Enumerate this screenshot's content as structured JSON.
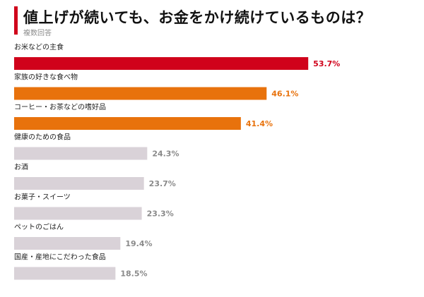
{
  "header": {
    "title": "値上げが続いても、お金をかけ続けているものは？",
    "subtitle": "複数回答"
  },
  "colors": {
    "accent": "#d0021b",
    "top": "#d0021b",
    "high": "#e8720c",
    "other": "#d9d2d8",
    "other_text": "#8a8a8a"
  },
  "chart_data": {
    "type": "bar",
    "orientation": "horizontal",
    "title": "値上げが続いても、お金をかけ続けているものは？",
    "subtitle": "複数回答",
    "categories": [
      "お米などの主食",
      "家族の好きな食べ物",
      "コーヒー・お茶などの嗜好品",
      "健康のための食品",
      "お酒",
      "お菓子・スイーツ",
      "ペットのごはん",
      "国産・産地にこだわった食品"
    ],
    "values": [
      53.7,
      46.1,
      41.4,
      24.3,
      23.7,
      23.3,
      19.4,
      18.5
    ],
    "value_labels": [
      "53.7%",
      "46.1%",
      "41.4%",
      "24.3%",
      "23.7%",
      "23.3%",
      "19.4%",
      "18.5%"
    ],
    "bar_colors": [
      "#d0021b",
      "#e8720c",
      "#e8720c",
      "#d9d2d8",
      "#d9d2d8",
      "#d9d2d8",
      "#d9d2d8",
      "#d9d2d8"
    ],
    "label_colors": [
      "#d0021b",
      "#e8720c",
      "#e8720c",
      "#8a8a8a",
      "#8a8a8a",
      "#8a8a8a",
      "#8a8a8a",
      "#8a8a8a"
    ],
    "unit": "%",
    "xlabel": "",
    "ylabel": "",
    "grid": false,
    "legend": "none"
  }
}
